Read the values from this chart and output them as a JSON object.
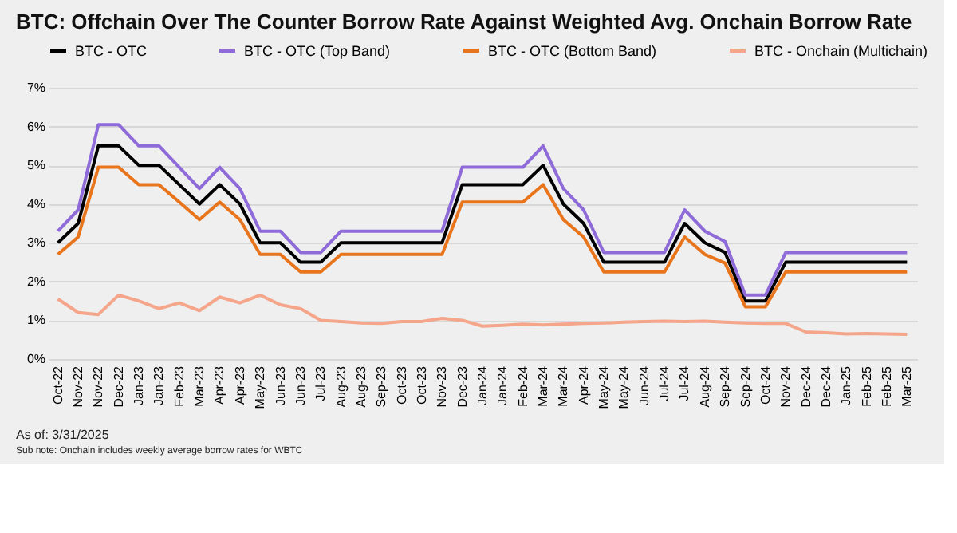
{
  "chart_data": {
    "type": "line",
    "title": "BTC: Offchain Over The Counter Borrow Rate Against Weighted Avg. Onchain Borrow Rate",
    "categories": [
      "Oct-22",
      "Nov-22",
      "Nov-22",
      "Dec-22",
      "Jan-23",
      "Jan-23",
      "Feb-23",
      "Mar-23",
      "Apr-23",
      "Apr-23",
      "May-23",
      "Jun-23",
      "Jun-23",
      "Jul-23",
      "Aug-23",
      "Aug-23",
      "Sep-23",
      "Oct-23",
      "Oct-23",
      "Nov-23",
      "Dec-23",
      "Jan-24",
      "Jan-24",
      "Feb-24",
      "Mar-24",
      "Mar-24",
      "Apr-24",
      "May-24",
      "May-24",
      "Jun-24",
      "Jul-24",
      "Jul-24",
      "Aug-24",
      "Sep-24",
      "Sep-24",
      "Oct-24",
      "Nov-24",
      "Dec-24",
      "Dec-24",
      "Jan-25",
      "Feb-25",
      "Feb-25",
      "Mar-25"
    ],
    "series": [
      {
        "name": "BTC - OTC",
        "color": "#000000",
        "values": [
          3.0,
          3.5,
          5.5,
          5.5,
          5.0,
          5.0,
          4.5,
          4.0,
          4.5,
          4.0,
          3.0,
          3.0,
          2.5,
          2.5,
          3.0,
          3.0,
          3.0,
          3.0,
          3.0,
          3.0,
          4.5,
          4.5,
          4.5,
          4.5,
          5.0,
          4.0,
          3.5,
          2.5,
          2.5,
          2.5,
          2.5,
          3.5,
          3.0,
          2.75,
          1.5,
          1.5,
          2.5,
          2.5,
          2.5,
          2.5,
          2.5,
          2.5,
          2.5
        ]
      },
      {
        "name": "BTC - OTC (Top Band)",
        "color": "#8e6bd8",
        "values": [
          3.3,
          3.85,
          6.05,
          6.05,
          5.5,
          5.5,
          4.95,
          4.4,
          4.95,
          4.4,
          3.3,
          3.3,
          2.75,
          2.75,
          3.3,
          3.3,
          3.3,
          3.3,
          3.3,
          3.3,
          4.95,
          4.95,
          4.95,
          4.95,
          5.5,
          4.4,
          3.85,
          2.75,
          2.75,
          2.75,
          2.75,
          3.85,
          3.3,
          3.03,
          1.65,
          1.65,
          2.75,
          2.75,
          2.75,
          2.75,
          2.75,
          2.75,
          2.75
        ]
      },
      {
        "name": "BTC - OTC (Bottom Band)",
        "color": "#e8741c",
        "values": [
          2.7,
          3.15,
          4.95,
          4.95,
          4.5,
          4.5,
          4.05,
          3.6,
          4.05,
          3.6,
          2.7,
          2.7,
          2.25,
          2.25,
          2.7,
          2.7,
          2.7,
          2.7,
          2.7,
          2.7,
          4.05,
          4.05,
          4.05,
          4.05,
          4.5,
          3.6,
          3.15,
          2.25,
          2.25,
          2.25,
          2.25,
          3.15,
          2.7,
          2.48,
          1.35,
          1.35,
          2.25,
          2.25,
          2.25,
          2.25,
          2.25,
          2.25,
          2.25
        ]
      },
      {
        "name": "BTC - Onchain (Multichain)",
        "color": "#f4a58a",
        "values": [
          1.55,
          1.2,
          1.15,
          1.65,
          1.5,
          1.3,
          1.45,
          1.25,
          1.6,
          1.45,
          1.65,
          1.4,
          1.3,
          1.0,
          0.97,
          0.93,
          0.92,
          0.97,
          0.97,
          1.05,
          1.0,
          0.85,
          0.87,
          0.9,
          0.88,
          0.9,
          0.92,
          0.93,
          0.95,
          0.97,
          0.98,
          0.97,
          0.98,
          0.95,
          0.93,
          0.92,
          0.92,
          0.7,
          0.68,
          0.65,
          0.66,
          0.65,
          0.64
        ]
      }
    ],
    "ylim": [
      0,
      7
    ],
    "yticks": [
      {
        "value": 0,
        "label": "0%"
      },
      {
        "value": 1,
        "label": "1%"
      },
      {
        "value": 2,
        "label": "2%"
      },
      {
        "value": 3,
        "label": "3%"
      },
      {
        "value": 4,
        "label": "4%"
      },
      {
        "value": 5,
        "label": "5%"
      },
      {
        "value": 6,
        "label": "6%"
      },
      {
        "value": 7,
        "label": "7%"
      }
    ],
    "grid": "y",
    "legend": "top",
    "marker": "none",
    "line_style": "solid",
    "annotations": [
      "As of: 3/31/2025",
      "Sub note: Onchain includes weekly average borrow rates for WBTC"
    ]
  }
}
